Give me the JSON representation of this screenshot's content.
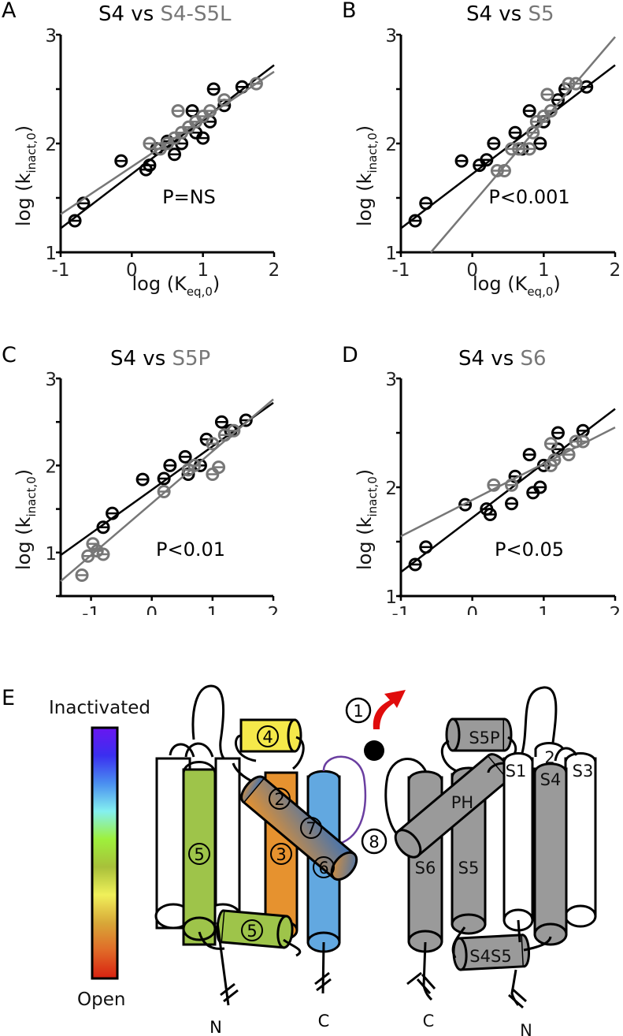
{
  "figure": {
    "panel_E": {
      "letter": "E",
      "colorbar": {
        "top_label": "Inactivated",
        "bottom_label": "Open",
        "stops": [
          "#6a16f0",
          "#3a2ff0",
          "#4a8ff0",
          "#84f0f0",
          "#9ef03c",
          "#a8c03a",
          "#f0f05a",
          "#d8a838",
          "#e06a28",
          "#d82010"
        ]
      },
      "left_subunit": {
        "helix_labels": [
          "5",
          "3",
          "6",
          "2",
          "7",
          "4",
          "5"
        ],
        "terminal_labels": [
          "N",
          "C"
        ]
      },
      "markers": {
        "arrow_label": "1",
        "gap_label": "8"
      },
      "right_subunit": {
        "helix_labels": [
          "S5P",
          "PH",
          "S6",
          "S5",
          "S1",
          "2",
          "S4",
          "S3",
          "S4S5"
        ],
        "terminal_labels": [
          "C",
          "N"
        ]
      },
      "colors": {
        "yellow": "#f5e94a",
        "orange": "#e6922f",
        "green": "#9ec44a",
        "blue": "#62a8e0",
        "gray": "#9a9a9a",
        "red": "#e00c0c",
        "purple": "#6a3ea0"
      }
    }
  },
  "chart_data": [
    {
      "type": "scatter",
      "panel": "A",
      "title_prefix": "S4 vs ",
      "title_highlight": "S4-S5L",
      "xlabel": "log (K",
      "xlabel_sub": "eq,0",
      "ylabel": "log (k",
      "ylabel_sub": "inact,0",
      "xlim": [
        -1,
        2
      ],
      "ylim": [
        1,
        3
      ],
      "xticks": [
        "-1",
        "0",
        "1",
        "2"
      ],
      "yticks": [
        "1",
        "2",
        "3"
      ],
      "annotation": "P=NS",
      "series": [
        {
          "name": "S4",
          "color": "#000000",
          "fit": {
            "x": [
              -1,
              2
            ],
            "y": [
              1.22,
              2.72
            ]
          },
          "points": [
            [
              -0.8,
              1.29
            ],
            [
              -0.68,
              1.45
            ],
            [
              -0.15,
              1.84
            ],
            [
              0.2,
              1.76
            ],
            [
              0.25,
              1.8
            ],
            [
              0.35,
              1.95
            ],
            [
              0.5,
              2.02
            ],
            [
              0.6,
              1.9
            ],
            [
              0.7,
              2.0
            ],
            [
              0.85,
              2.3
            ],
            [
              0.9,
              2.1
            ],
            [
              1.0,
              2.05
            ],
            [
              1.1,
              2.2
            ],
            [
              1.15,
              2.5
            ],
            [
              1.3,
              2.35
            ],
            [
              1.55,
              2.52
            ]
          ]
        },
        {
          "name": "S4-S5L",
          "color": "#777777",
          "fit": {
            "x": [
              -1,
              2
            ],
            "y": [
              1.35,
              2.66
            ]
          },
          "points": [
            [
              0.25,
              2.0
            ],
            [
              0.4,
              1.95
            ],
            [
              0.5,
              2.0
            ],
            [
              0.6,
              2.05
            ],
            [
              0.65,
              2.3
            ],
            [
              0.7,
              2.1
            ],
            [
              0.8,
              2.15
            ],
            [
              0.9,
              2.2
            ],
            [
              1.0,
              2.25
            ],
            [
              1.1,
              2.3
            ],
            [
              1.3,
              2.4
            ],
            [
              1.75,
              2.55
            ]
          ]
        }
      ]
    },
    {
      "type": "scatter",
      "panel": "B",
      "title_prefix": "S4 vs ",
      "title_highlight": "S5",
      "xlabel": "log (K",
      "xlabel_sub": "eq,0",
      "ylabel": "log (k",
      "ylabel_sub": "inact,0",
      "xlim": [
        -1,
        2
      ],
      "ylim": [
        1,
        3
      ],
      "xticks": [
        "-1",
        "0",
        "1",
        "2"
      ],
      "yticks": [
        "1",
        "2",
        "3"
      ],
      "annotation": "P<0.001",
      "series": [
        {
          "name": "S4",
          "color": "#000000",
          "fit": {
            "x": [
              -1,
              2
            ],
            "y": [
              1.22,
              2.72
            ]
          },
          "points": [
            [
              -0.8,
              1.29
            ],
            [
              -0.65,
              1.45
            ],
            [
              -0.15,
              1.84
            ],
            [
              0.1,
              1.8
            ],
            [
              0.2,
              1.85
            ],
            [
              0.3,
              2.0
            ],
            [
              0.6,
              2.1
            ],
            [
              0.7,
              1.95
            ],
            [
              0.8,
              2.3
            ],
            [
              0.95,
              2.0
            ],
            [
              1.0,
              2.2
            ],
            [
              1.2,
              2.4
            ],
            [
              1.3,
              2.5
            ],
            [
              1.6,
              2.52
            ]
          ]
        },
        {
          "name": "S5",
          "color": "#777777",
          "fit": {
            "x": [
              -0.58,
              2
            ],
            "y": [
              1.0,
              2.98
            ]
          },
          "points": [
            [
              0.35,
              1.75
            ],
            [
              0.45,
              1.75
            ],
            [
              0.55,
              1.95
            ],
            [
              0.65,
              1.95
            ],
            [
              0.8,
              1.95
            ],
            [
              0.85,
              2.1
            ],
            [
              0.9,
              2.2
            ],
            [
              1.0,
              2.25
            ],
            [
              1.1,
              2.3
            ],
            [
              1.05,
              2.45
            ],
            [
              1.35,
              2.55
            ],
            [
              1.45,
              2.55
            ]
          ]
        }
      ]
    },
    {
      "type": "scatter",
      "panel": "C",
      "title_prefix": "S4 vs ",
      "title_highlight": "S5P",
      "xlabel": "log (K",
      "xlabel_sub": "eq,0",
      "ylabel": "log (k",
      "ylabel_sub": "inact,0",
      "xlim": [
        -1.5,
        2
      ],
      "ylim": [
        0.5,
        3
      ],
      "xticks": [
        "-1",
        "0",
        "1",
        "2"
      ],
      "yticks": [
        "1",
        "2",
        "3"
      ],
      "annotation": "P<0.01",
      "series": [
        {
          "name": "S4",
          "color": "#000000",
          "fit": {
            "x": [
              -1.5,
              2
            ],
            "y": [
              0.97,
              2.72
            ]
          },
          "points": [
            [
              -0.8,
              1.29
            ],
            [
              -0.65,
              1.45
            ],
            [
              -0.15,
              1.84
            ],
            [
              0.2,
              1.85
            ],
            [
              0.3,
              2.0
            ],
            [
              0.55,
              2.1
            ],
            [
              0.6,
              1.9
            ],
            [
              0.8,
              2.0
            ],
            [
              0.9,
              2.3
            ],
            [
              1.15,
              2.5
            ],
            [
              1.3,
              2.4
            ],
            [
              1.55,
              2.52
            ]
          ]
        },
        {
          "name": "S5P",
          "color": "#777777",
          "fit": {
            "x": [
              -1.5,
              2
            ],
            "y": [
              0.67,
              2.76
            ]
          },
          "points": [
            [
              -1.15,
              0.74
            ],
            [
              -1.05,
              0.96
            ],
            [
              -0.97,
              1.1
            ],
            [
              -0.9,
              1.02
            ],
            [
              -0.8,
              0.98
            ],
            [
              0.2,
              1.7
            ],
            [
              0.6,
              1.95
            ],
            [
              0.7,
              2.0
            ],
            [
              1.0,
              1.9
            ],
            [
              1.1,
              1.98
            ],
            [
              1.0,
              2.25
            ],
            [
              1.2,
              2.35
            ],
            [
              1.35,
              2.4
            ]
          ]
        }
      ]
    },
    {
      "type": "scatter",
      "panel": "D",
      "title_prefix": "S4 vs ",
      "title_highlight": "S6",
      "xlabel": "log (K",
      "xlabel_sub": "eq,0",
      "ylabel": "log (k",
      "ylabel_sub": "inact,0",
      "xlim": [
        -1,
        2
      ],
      "ylim": [
        1,
        3
      ],
      "xticks": [
        "-1",
        "0",
        "1",
        "2"
      ],
      "yticks": [
        "1",
        "2",
        "3"
      ],
      "annotation": "P<0.05",
      "series": [
        {
          "name": "S4",
          "color": "#000000",
          "fit": {
            "x": [
              -1,
              2
            ],
            "y": [
              1.22,
              2.72
            ]
          },
          "points": [
            [
              -0.8,
              1.29
            ],
            [
              -0.65,
              1.45
            ],
            [
              -0.1,
              1.84
            ],
            [
              0.2,
              1.8
            ],
            [
              0.25,
              1.75
            ],
            [
              0.6,
              2.1
            ],
            [
              0.55,
              1.85
            ],
            [
              0.8,
              2.3
            ],
            [
              0.85,
              1.95
            ],
            [
              0.95,
              2.0
            ],
            [
              1.0,
              2.2
            ],
            [
              1.2,
              2.35
            ],
            [
              1.2,
              2.5
            ],
            [
              1.55,
              2.52
            ]
          ]
        },
        {
          "name": "S6",
          "color": "#777777",
          "fit": {
            "x": [
              -1,
              2
            ],
            "y": [
              1.55,
              2.55
            ]
          },
          "points": [
            [
              0.3,
              2.02
            ],
            [
              0.55,
              2.02
            ],
            [
              1.1,
              2.2
            ],
            [
              1.15,
              2.25
            ],
            [
              1.1,
              2.4
            ],
            [
              1.35,
              2.3
            ],
            [
              1.45,
              2.42
            ],
            [
              1.55,
              2.42
            ]
          ]
        }
      ]
    }
  ]
}
